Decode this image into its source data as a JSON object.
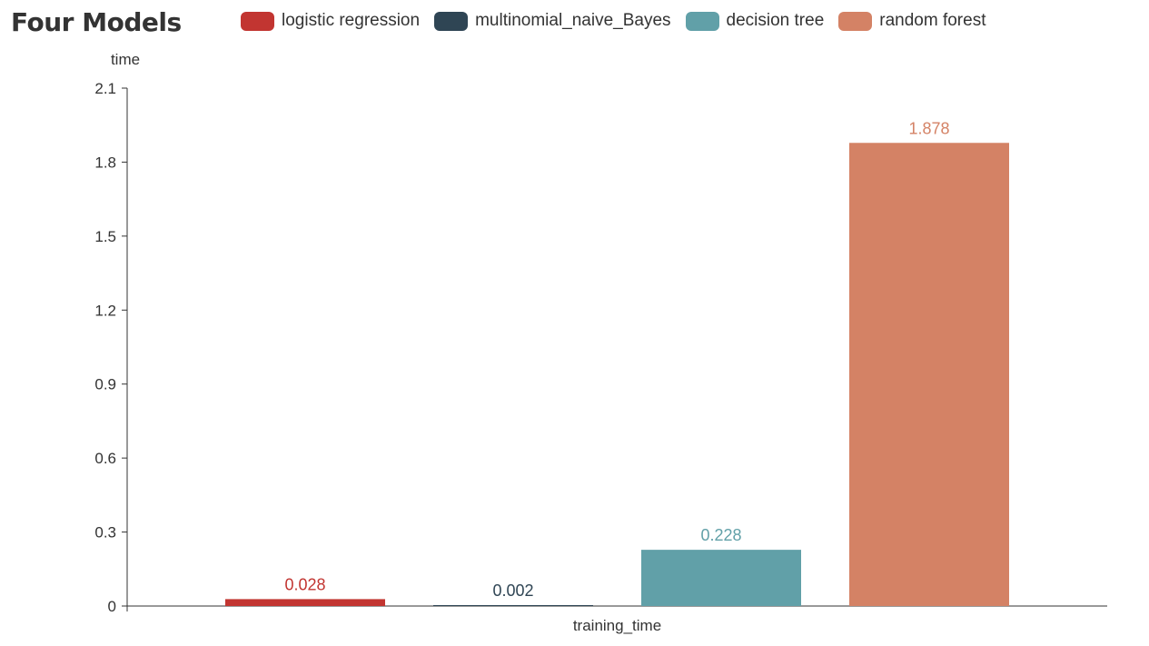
{
  "title": "Four Models",
  "chart_data": {
    "type": "bar",
    "title": "Four Models",
    "categories": [
      "training_time"
    ],
    "xlabel": "training_time",
    "ylabel": "time",
    "ylim": [
      0,
      2.1
    ],
    "yticks": [
      "0",
      "0.3",
      "0.6",
      "0.9",
      "1.2",
      "1.5",
      "1.8",
      "2.1"
    ],
    "legend_position": "top",
    "grid": false,
    "series": [
      {
        "name": "logistic regression",
        "values": [
          0.028
        ],
        "label": "0.028",
        "color": "#c23531"
      },
      {
        "name": "multinomial_naive_Bayes",
        "values": [
          0.002
        ],
        "label": "0.002",
        "color": "#2f4554"
      },
      {
        "name": "decision tree",
        "values": [
          0.228
        ],
        "label": "0.228",
        "color": "#61a0a8"
      },
      {
        "name": "random forest",
        "values": [
          1.878
        ],
        "label": "1.878",
        "color": "#d48265"
      }
    ]
  }
}
